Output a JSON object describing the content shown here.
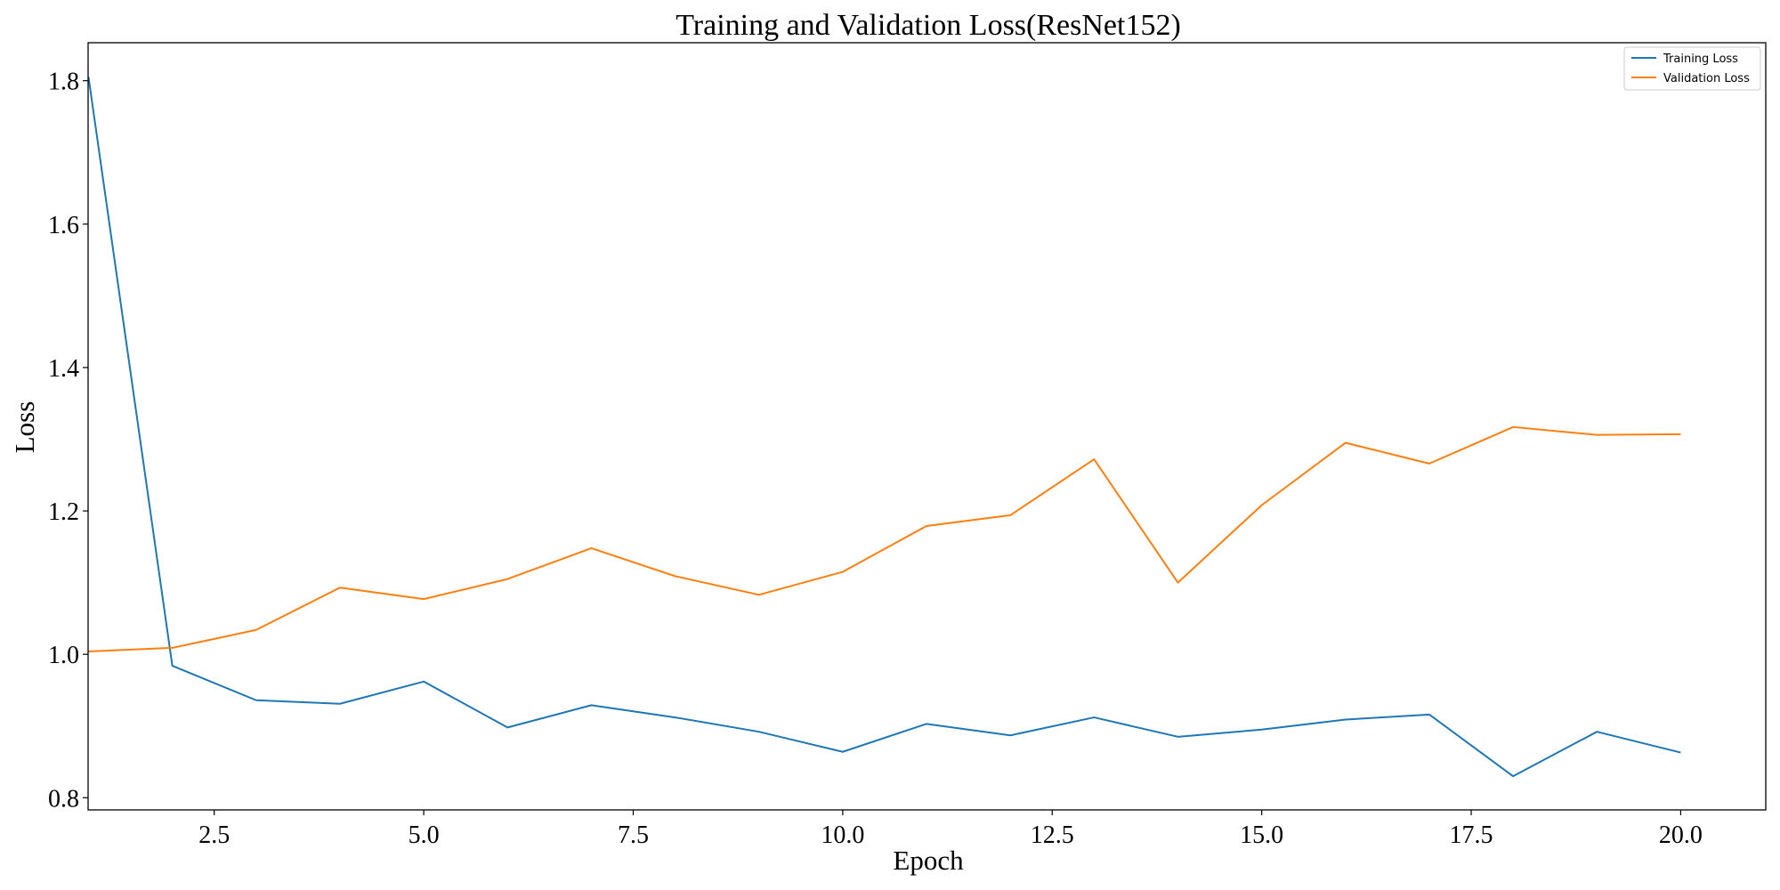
{
  "chart_data": {
    "type": "line",
    "title": "Training and Validation Loss(ResNet152)",
    "xlabel": "Epoch",
    "ylabel": "Loss",
    "x": [
      1,
      2,
      3,
      4,
      5,
      6,
      7,
      8,
      9,
      10,
      11,
      12,
      13,
      14,
      15,
      16,
      17,
      18,
      19,
      20
    ],
    "xlim": [
      0.995,
      21.015
    ],
    "ylim": [
      0.783,
      1.853
    ],
    "xticks": [
      2.5,
      5.0,
      7.5,
      10.0,
      12.5,
      15.0,
      17.5,
      20.0
    ],
    "xtick_labels": [
      "2.5",
      "5.0",
      "7.5",
      "10.0",
      "12.5",
      "15.0",
      "17.5",
      "20.0"
    ],
    "yticks": [
      0.8,
      1.0,
      1.2,
      1.4,
      1.6,
      1.8
    ],
    "ytick_labels": [
      "0.8",
      "1.0",
      "1.2",
      "1.4",
      "1.6",
      "1.8"
    ],
    "grid": false,
    "legend_position": "top-right",
    "series": [
      {
        "name": "Training Loss",
        "color": "#1f77b4",
        "values": [
          1.805,
          0.984,
          0.936,
          0.931,
          0.962,
          0.898,
          0.929,
          0.912,
          0.892,
          0.864,
          0.903,
          0.887,
          0.912,
          0.885,
          0.895,
          0.909,
          0.916,
          0.83,
          0.892,
          0.863
        ]
      },
      {
        "name": "Validation Loss",
        "color": "#ff7f0e",
        "values": [
          1.004,
          1.009,
          1.034,
          1.093,
          1.077,
          1.105,
          1.148,
          1.109,
          1.083,
          1.115,
          1.179,
          1.194,
          1.272,
          1.1,
          1.208,
          1.295,
          1.266,
          1.317,
          1.306,
          1.307
        ]
      }
    ]
  }
}
